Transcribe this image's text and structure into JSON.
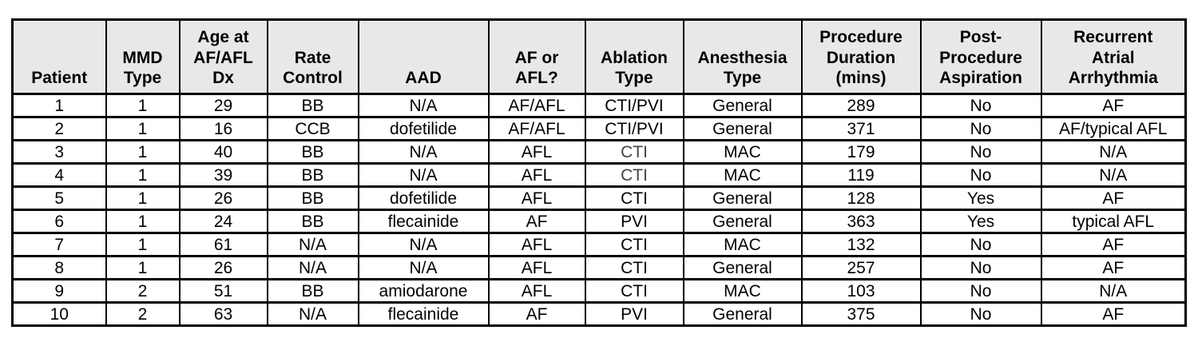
{
  "table": {
    "colors": {
      "header_bg": "#e8e8e8",
      "border": "#000000",
      "text": "#000000",
      "muted_text": "#444444"
    },
    "columns": [
      {
        "id": "patient",
        "label": "Patient"
      },
      {
        "id": "mmd-type",
        "label": "MMD\nType"
      },
      {
        "id": "age-at-af-afl-dx",
        "label": "Age at\nAF/AFL\nDx"
      },
      {
        "id": "rate-control",
        "label": "Rate\nControl"
      },
      {
        "id": "aad",
        "label": "AAD"
      },
      {
        "id": "af-or-afl",
        "label": "AF or\nAFL?"
      },
      {
        "id": "ablation-type",
        "label": "Ablation\nType"
      },
      {
        "id": "anesthesia-type",
        "label": "Anesthesia\nType"
      },
      {
        "id": "procedure-duration-mins",
        "label": "Procedure\nDuration\n(mins)"
      },
      {
        "id": "post-procedure-aspiration",
        "label": "Post-\nProcedure\nAspiration"
      },
      {
        "id": "recurrent-atrial-arrhythmia",
        "label": "Recurrent\nAtrial\nArrhythmia"
      }
    ],
    "rows": [
      [
        "1",
        "1",
        "29",
        "BB",
        "N/A",
        "AF/AFL",
        "CTI/PVI",
        "General",
        "289",
        "No",
        "AF"
      ],
      [
        "2",
        "1",
        "16",
        "CCB",
        "dofetilide",
        "AF/AFL",
        "CTI/PVI",
        "General",
        "371",
        "No",
        "AF/typical AFL"
      ],
      [
        "3",
        "1",
        "40",
        "BB",
        "N/A",
        "AFL",
        "CTI",
        "MAC",
        "179",
        "No",
        "N/A"
      ],
      [
        "4",
        "1",
        "39",
        "BB",
        "N/A",
        "AFL",
        "CTI",
        "MAC",
        "119",
        "No",
        "N/A"
      ],
      [
        "5",
        "1",
        "26",
        "BB",
        "dofetilide",
        "AFL",
        "CTI",
        "General",
        "128",
        "Yes",
        "AF"
      ],
      [
        "6",
        "1",
        "24",
        "BB",
        "flecainide",
        "AF",
        "PVI",
        "General",
        "363",
        "Yes",
        "typical AFL"
      ],
      [
        "7",
        "1",
        "61",
        "N/A",
        "N/A",
        "AFL",
        "CTI",
        "MAC",
        "132",
        "No",
        "AF"
      ],
      [
        "8",
        "1",
        "26",
        "N/A",
        "N/A",
        "AFL",
        "CTI",
        "General",
        "257",
        "No",
        "AF"
      ],
      [
        "9",
        "2",
        "51",
        "BB",
        "amiodarone",
        "AFL",
        "CTI",
        "MAC",
        "103",
        "No",
        "N/A"
      ],
      [
        "10",
        "2",
        "63",
        "N/A",
        "flecainide",
        "AF",
        "PVI",
        "General",
        "375",
        "No",
        "AF"
      ]
    ],
    "muted_cells": [
      [
        2,
        6
      ],
      [
        3,
        6
      ]
    ]
  }
}
